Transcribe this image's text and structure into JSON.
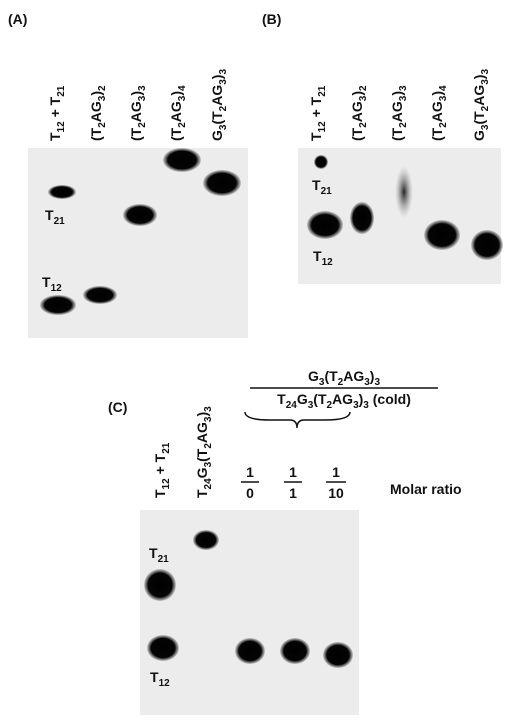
{
  "panels": [
    {
      "label": "(A)",
      "lanes": [
        [
          "T",
          "12",
          " + T",
          "21"
        ],
        [
          "(T",
          "2",
          "AG",
          "3",
          ")",
          "2"
        ],
        [
          "(T",
          "2",
          "AG",
          "3",
          ")",
          "3"
        ],
        [
          "(T",
          "2",
          "AG",
          "3",
          ")",
          "4"
        ],
        [
          "G",
          "3",
          "(T",
          "2",
          "AG",
          "3",
          ")",
          "3"
        ]
      ],
      "band_labels": [
        [
          "T",
          "21"
        ],
        [
          "T",
          "12"
        ]
      ]
    },
    {
      "label": "(B)",
      "lanes": [
        [
          "T",
          "12",
          " + T",
          "21"
        ],
        [
          "(T",
          "2",
          "AG",
          "3",
          ")",
          "2"
        ],
        [
          "(T",
          "2",
          "AG",
          "3",
          ")",
          "3"
        ],
        [
          "(T",
          "2",
          "AG",
          "3",
          ")",
          "4"
        ],
        [
          "G",
          "3",
          "(T",
          "2",
          "AG",
          "3",
          ")",
          "3"
        ]
      ],
      "band_labels": [
        [
          "T",
          "21"
        ],
        [
          "T",
          "12"
        ]
      ]
    },
    {
      "label": "(C)",
      "lanes": [
        [
          "T",
          "12",
          " + T",
          "21"
        ],
        [
          "T",
          "24",
          "G",
          "3",
          "(T",
          "2",
          "AG",
          "3",
          ")",
          "3"
        ]
      ],
      "band_labels": [
        [
          "T",
          "21"
        ],
        [
          "T",
          "12"
        ]
      ],
      "fraction": {
        "numerator": [
          "G",
          "3",
          "(T",
          "2",
          "AG",
          "3",
          ")",
          "3"
        ],
        "denominator": [
          "T",
          "24",
          "G",
          "3",
          "(T",
          "2",
          "AG",
          "3",
          ")",
          "3",
          " (cold)"
        ]
      },
      "ratios": [
        {
          "top": 1,
          "bottom": 0
        },
        {
          "top": 1,
          "bottom": 1
        },
        {
          "top": 1,
          "bottom": 10
        }
      ],
      "ratio_label": "Molar ratio"
    }
  ]
}
